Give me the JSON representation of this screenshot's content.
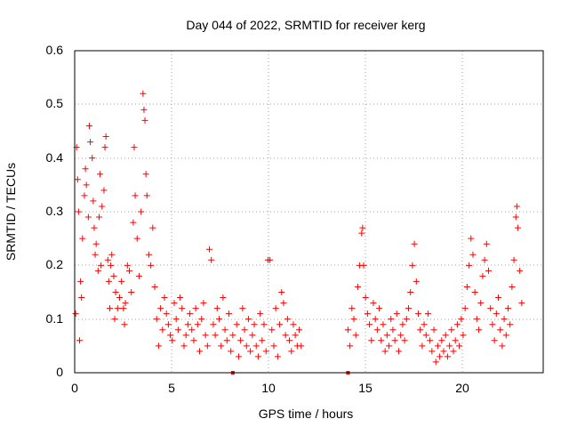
{
  "chart_data": {
    "type": "scatter",
    "title": "Day 044 of 2022, SRMTID for receiver kerg",
    "xlabel": "GPS time / hours",
    "ylabel": "SRMTID / TECUs",
    "xlim": [
      0,
      24
    ],
    "ylim": [
      0,
      0.6
    ],
    "xticks": [
      0,
      5,
      10,
      15,
      20
    ],
    "xtick_labels": [
      "0",
      "5",
      "10",
      "15",
      "20"
    ],
    "yticks": [
      0,
      0.1,
      0.2,
      0.3,
      0.4,
      0.5,
      0.6
    ],
    "ytick_labels": [
      "0",
      "0.1",
      "0.2",
      "0.3",
      "0.4",
      "0.5",
      "0.6"
    ],
    "grid": true,
    "marker": "+",
    "marker_color": "#ff0000",
    "series": [
      {
        "name": "SRMTID",
        "points": [
          [
            0.05,
            0.11
          ],
          [
            0.1,
            0.42
          ],
          [
            0.15,
            0.36
          ],
          [
            0.2,
            0.3
          ],
          [
            0.25,
            0.06
          ],
          [
            0.3,
            0.17
          ],
          [
            0.35,
            0.14
          ],
          [
            0.4,
            0.25
          ],
          [
            0.5,
            0.33
          ],
          [
            0.55,
            0.38
          ],
          [
            0.6,
            0.35
          ],
          [
            0.7,
            0.29
          ],
          [
            0.75,
            0.46
          ],
          [
            0.8,
            0.43
          ],
          [
            0.9,
            0.4
          ],
          [
            0.95,
            0.32
          ],
          [
            1.0,
            0.27
          ],
          [
            1.05,
            0.22
          ],
          [
            1.1,
            0.24
          ],
          [
            1.2,
            0.19
          ],
          [
            1.25,
            0.29
          ],
          [
            1.3,
            0.37
          ],
          [
            1.35,
            0.2
          ],
          [
            1.4,
            0.31
          ],
          [
            1.5,
            0.34
          ],
          [
            1.55,
            0.42
          ],
          [
            1.6,
            0.44
          ],
          [
            1.7,
            0.21
          ],
          [
            1.75,
            0.17
          ],
          [
            1.8,
            0.12
          ],
          [
            1.85,
            0.2
          ],
          [
            1.9,
            0.22
          ],
          [
            2.0,
            0.18
          ],
          [
            2.05,
            0.1
          ],
          [
            2.1,
            0.15
          ],
          [
            2.2,
            0.12
          ],
          [
            2.3,
            0.14
          ],
          [
            2.4,
            0.17
          ],
          [
            2.5,
            0.12
          ],
          [
            2.55,
            0.09
          ],
          [
            2.6,
            0.13
          ],
          [
            2.7,
            0.2
          ],
          [
            2.8,
            0.19
          ],
          [
            2.9,
            0.15
          ],
          [
            3.0,
            0.28
          ],
          [
            3.05,
            0.42
          ],
          [
            3.1,
            0.33
          ],
          [
            3.2,
            0.25
          ],
          [
            3.3,
            0.18
          ],
          [
            3.4,
            0.3
          ],
          [
            3.5,
            0.52
          ],
          [
            3.55,
            0.49
          ],
          [
            3.6,
            0.47
          ],
          [
            3.65,
            0.37
          ],
          [
            3.7,
            0.33
          ],
          [
            3.8,
            0.22
          ],
          [
            3.9,
            0.2
          ],
          [
            4.0,
            0.27
          ],
          [
            4.1,
            0.16
          ],
          [
            4.2,
            0.1
          ],
          [
            4.3,
            0.05
          ],
          [
            4.4,
            0.12
          ],
          [
            4.5,
            0.08
          ],
          [
            4.6,
            0.14
          ],
          [
            4.7,
            0.11
          ],
          [
            4.8,
            0.09
          ],
          [
            4.9,
            0.07
          ],
          [
            5.0,
            0.06
          ],
          [
            5.1,
            0.13
          ],
          [
            5.2,
            0.1
          ],
          [
            5.3,
            0.08
          ],
          [
            5.4,
            0.14
          ],
          [
            5.5,
            0.12
          ],
          [
            5.6,
            0.05
          ],
          [
            5.7,
            0.07
          ],
          [
            5.8,
            0.09
          ],
          [
            5.9,
            0.11
          ],
          [
            6.0,
            0.08
          ],
          [
            6.1,
            0.06
          ],
          [
            6.2,
            0.12
          ],
          [
            6.3,
            0.09
          ],
          [
            6.4,
            0.04
          ],
          [
            6.5,
            0.1
          ],
          [
            6.6,
            0.13
          ],
          [
            6.7,
            0.07
          ],
          [
            6.8,
            0.05
          ],
          [
            6.9,
            0.23
          ],
          [
            7.0,
            0.21
          ],
          [
            7.1,
            0.09
          ],
          [
            7.2,
            0.07
          ],
          [
            7.3,
            0.12
          ],
          [
            7.4,
            0.1
          ],
          [
            7.5,
            0.05
          ],
          [
            7.6,
            0.14
          ],
          [
            7.7,
            0.08
          ],
          [
            7.8,
            0.06
          ],
          [
            7.9,
            0.11
          ],
          [
            8.0,
            0.04
          ],
          [
            8.1,
            0.07
          ],
          [
            8.3,
            0.09
          ],
          [
            8.4,
            0.03
          ],
          [
            8.5,
            0.06
          ],
          [
            8.6,
            0.12
          ],
          [
            8.7,
            0.08
          ],
          [
            8.8,
            0.05
          ],
          [
            8.9,
            0.1
          ],
          [
            9.0,
            0.04
          ],
          [
            9.1,
            0.07
          ],
          [
            9.2,
            0.09
          ],
          [
            9.3,
            0.05
          ],
          [
            9.4,
            0.03
          ],
          [
            9.5,
            0.11
          ],
          [
            9.6,
            0.06
          ],
          [
            9.7,
            0.09
          ],
          [
            9.8,
            0.04
          ],
          [
            9.9,
            0.21
          ],
          [
            10.0,
            0.21
          ],
          [
            10.1,
            0.08
          ],
          [
            10.2,
            0.05
          ],
          [
            10.3,
            0.12
          ],
          [
            10.4,
            0.03
          ],
          [
            10.5,
            0.09
          ],
          [
            10.6,
            0.15
          ],
          [
            10.7,
            0.13
          ],
          [
            10.8,
            0.07
          ],
          [
            10.9,
            0.1
          ],
          [
            11.0,
            0.06
          ],
          [
            11.1,
            0.04
          ],
          [
            11.2,
            0.09
          ],
          [
            11.3,
            0.07
          ],
          [
            11.4,
            0.05
          ],
          [
            11.5,
            0.08
          ],
          [
            11.6,
            0.05
          ],
          [
            14.0,
            0.08
          ],
          [
            14.1,
            0.05
          ],
          [
            14.2,
            0.12
          ],
          [
            14.3,
            0.1
          ],
          [
            14.4,
            0.07
          ],
          [
            14.5,
            0.16
          ],
          [
            14.6,
            0.2
          ],
          [
            14.7,
            0.26
          ],
          [
            14.75,
            0.27
          ],
          [
            14.8,
            0.2
          ],
          [
            14.9,
            0.14
          ],
          [
            15.0,
            0.11
          ],
          [
            15.1,
            0.09
          ],
          [
            15.2,
            0.06
          ],
          [
            15.3,
            0.13
          ],
          [
            15.4,
            0.1
          ],
          [
            15.5,
            0.08
          ],
          [
            15.6,
            0.12
          ],
          [
            15.7,
            0.06
          ],
          [
            15.8,
            0.09
          ],
          [
            15.9,
            0.04
          ],
          [
            16.0,
            0.07
          ],
          [
            16.1,
            0.05
          ],
          [
            16.2,
            0.1
          ],
          [
            16.3,
            0.08
          ],
          [
            16.4,
            0.06
          ],
          [
            16.5,
            0.11
          ],
          [
            16.6,
            0.04
          ],
          [
            16.7,
            0.07
          ],
          [
            16.8,
            0.09
          ],
          [
            16.9,
            0.06
          ],
          [
            17.0,
            0.1
          ],
          [
            17.1,
            0.12
          ],
          [
            17.2,
            0.15
          ],
          [
            17.3,
            0.2
          ],
          [
            17.4,
            0.24
          ],
          [
            17.5,
            0.17
          ],
          [
            17.6,
            0.11
          ],
          [
            17.7,
            0.08
          ],
          [
            17.8,
            0.05
          ],
          [
            17.9,
            0.09
          ],
          [
            18.0,
            0.07
          ],
          [
            18.1,
            0.11
          ],
          [
            18.2,
            0.06
          ],
          [
            18.3,
            0.04
          ],
          [
            18.4,
            0.08
          ],
          [
            18.5,
            0.02
          ],
          [
            18.6,
            0.05
          ],
          [
            18.7,
            0.03
          ],
          [
            18.8,
            0.06
          ],
          [
            18.9,
            0.04
          ],
          [
            19.0,
            0.07
          ],
          [
            19.1,
            0.03
          ],
          [
            19.2,
            0.05
          ],
          [
            19.3,
            0.08
          ],
          [
            19.4,
            0.04
          ],
          [
            19.5,
            0.06
          ],
          [
            19.6,
            0.09
          ],
          [
            19.7,
            0.05
          ],
          [
            19.8,
            0.1
          ],
          [
            19.9,
            0.07
          ],
          [
            20.0,
            0.12
          ],
          [
            20.1,
            0.16
          ],
          [
            20.2,
            0.2
          ],
          [
            20.3,
            0.25
          ],
          [
            20.4,
            0.22
          ],
          [
            20.5,
            0.15
          ],
          [
            20.6,
            0.1
          ],
          [
            20.7,
            0.08
          ],
          [
            20.8,
            0.13
          ],
          [
            20.9,
            0.18
          ],
          [
            21.0,
            0.21
          ],
          [
            21.1,
            0.24
          ],
          [
            21.2,
            0.19
          ],
          [
            21.3,
            0.12
          ],
          [
            21.4,
            0.09
          ],
          [
            21.5,
            0.06
          ],
          [
            21.6,
            0.11
          ],
          [
            21.7,
            0.14
          ],
          [
            21.8,
            0.08
          ],
          [
            21.9,
            0.05
          ],
          [
            22.0,
            0.1
          ],
          [
            22.1,
            0.07
          ],
          [
            22.2,
            0.12
          ],
          [
            22.3,
            0.09
          ],
          [
            22.4,
            0.16
          ],
          [
            22.5,
            0.21
          ],
          [
            22.6,
            0.29
          ],
          [
            22.65,
            0.31
          ],
          [
            22.7,
            0.27
          ],
          [
            22.8,
            0.19
          ],
          [
            22.9,
            0.13
          ]
        ]
      }
    ],
    "flagged_points": [
      [
        8.1,
        0.0
      ],
      [
        14.0,
        0.0
      ]
    ]
  }
}
